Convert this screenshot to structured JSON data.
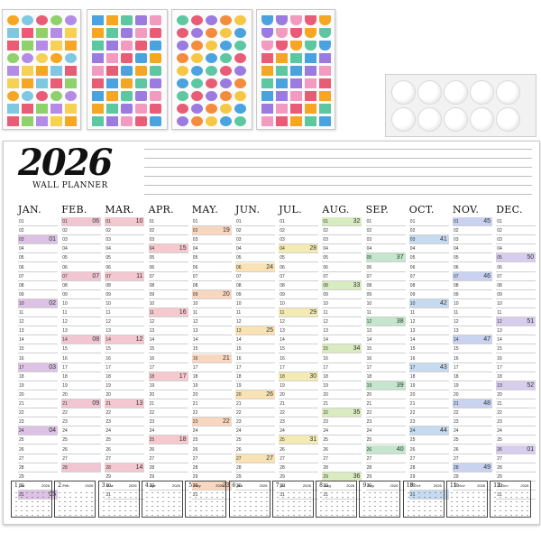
{
  "planner": {
    "year": "2026",
    "title": "WALL PLANNER"
  },
  "months": [
    {
      "name": "JAN.",
      "days": 31,
      "color": "#dcc2e4",
      "hl": [
        3,
        10,
        17,
        24,
        31
      ],
      "weeks": [
        "01",
        "02",
        "03",
        "04",
        "05"
      ]
    },
    {
      "name": "FEB.",
      "days": 28,
      "color": "#f1c6d3",
      "hl": [
        1,
        7,
        14,
        21,
        28
      ],
      "weeks": [
        "06",
        "07",
        "08",
        "09"
      ]
    },
    {
      "name": "MAR.",
      "days": 31,
      "color": "#f4c8cf",
      "hl": [
        1,
        7,
        14,
        21,
        28
      ],
      "weeks": [
        "10",
        "11",
        "12",
        "13",
        "14"
      ]
    },
    {
      "name": "APR.",
      "days": 30,
      "color": "#f6c9cf",
      "hl": [
        4,
        11,
        18,
        25
      ],
      "weeks": [
        "15",
        "16",
        "17",
        "18"
      ]
    },
    {
      "name": "MAY.",
      "days": 31,
      "color": "#f8d6bf",
      "hl": [
        2,
        9,
        16,
        23,
        30
      ],
      "weeks": [
        "19",
        "20",
        "21",
        "22",
        "23"
      ]
    },
    {
      "name": "JUN.",
      "days": 30,
      "color": "#f9e2b4",
      "hl": [
        6,
        13,
        20,
        27
      ],
      "weeks": [
        "24",
        "25",
        "26",
        "27"
      ]
    },
    {
      "name": "JUL.",
      "days": 31,
      "color": "#f4ebb4",
      "hl": [
        4,
        11,
        18,
        25
      ],
      "weeks": [
        "28",
        "29",
        "30",
        "31"
      ]
    },
    {
      "name": "AUG.",
      "days": 31,
      "color": "#d9ecc0",
      "hl": [
        1,
        8,
        15,
        22,
        29
      ],
      "weeks": [
        "32",
        "33",
        "34",
        "35",
        "36"
      ]
    },
    {
      "name": "SEP.",
      "days": 30,
      "color": "#c3e6cc",
      "hl": [
        5,
        12,
        19,
        26
      ],
      "weeks": [
        "37",
        "38",
        "39",
        "40"
      ]
    },
    {
      "name": "OCT.",
      "days": 31,
      "color": "#c6daf0",
      "hl": [
        3,
        10,
        17,
        24,
        31
      ],
      "weeks": [
        "41",
        "42",
        "43",
        "44"
      ]
    },
    {
      "name": "NOV.",
      "days": 30,
      "color": "#c9d2f0",
      "hl": [
        1,
        7,
        14,
        21,
        28
      ],
      "weeks": [
        "45",
        "46",
        "47",
        "48",
        "49"
      ]
    },
    {
      "name": "DEC.",
      "days": 31,
      "color": "#d8cdee",
      "hl": [
        5,
        12,
        19,
        26
      ],
      "weeks": [
        "50",
        "51",
        "52",
        "01"
      ]
    }
  ],
  "mini_calendars": [
    {
      "label": "1",
      "sub": "Jan",
      "year": "2026"
    },
    {
      "label": "2",
      "sub": "Feb",
      "year": "2026"
    },
    {
      "label": "3",
      "sub": "Mar",
      "year": "2026"
    },
    {
      "label": "4",
      "sub": "Apr",
      "year": "2026"
    },
    {
      "label": "5",
      "sub": "May",
      "year": "2026"
    },
    {
      "label": "6",
      "sub": "Jun",
      "year": "2026"
    },
    {
      "label": "7",
      "sub": "Jul",
      "year": "2026"
    },
    {
      "label": "8",
      "sub": "Aug",
      "year": "2026"
    },
    {
      "label": "9",
      "sub": "Sep",
      "year": "2026"
    },
    {
      "label": "10",
      "sub": "Oct",
      "year": "2026"
    },
    {
      "label": "11",
      "sub": "Nov",
      "year": "2026"
    },
    {
      "label": "12",
      "sub": "Dec",
      "year": "2026"
    }
  ],
  "sticker_sheets": [
    {
      "name": "sheet-icons",
      "colors": [
        "#f5a623",
        "#7ec8e3",
        "#e85d75",
        "#8fd16a",
        "#b48ce8",
        "#f7d154"
      ]
    },
    {
      "name": "sheet-labels",
      "colors": [
        "#e85d75",
        "#4aa3df",
        "#f5a623",
        "#5cc7a1",
        "#9b7be0",
        "#f29ac0"
      ]
    },
    {
      "name": "sheet-circles",
      "colors": [
        "#f6c744",
        "#4aa3df",
        "#5cc7a1",
        "#e85d75",
        "#9b7be0",
        "#f58b3c"
      ]
    },
    {
      "name": "sheet-arrows",
      "colors": [
        "#e85d75",
        "#f5a623",
        "#5cc7a1",
        "#4aa3df",
        "#9b7be0",
        "#f29ac0"
      ]
    }
  ]
}
